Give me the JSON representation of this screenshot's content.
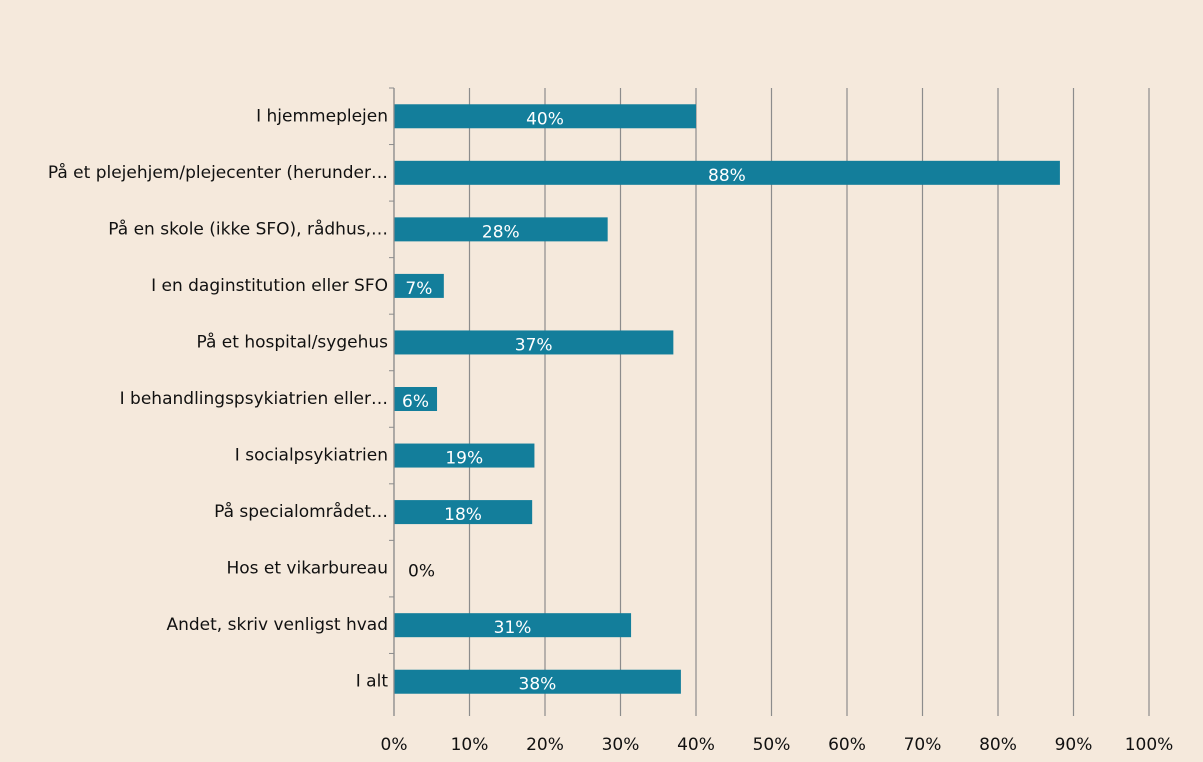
{
  "chart_data": {
    "type": "barh",
    "categories": [
      "I hjemmeplejen",
      "På et plejehjem/plejecenter (herunder…",
      "På en skole (ikke SFO), rådhus,…",
      "I en daginstitution eller SFO",
      "På et hospital/sygehus",
      "I behandlingspsykiatrien eller…",
      "I socialpsykiatrien",
      "På specialområdet…",
      "Hos et vikarbureau",
      "Andet, skriv venligst hvad",
      "I alt"
    ],
    "values": [
      40.0,
      88.2,
      28.3,
      6.6,
      37.0,
      5.7,
      18.6,
      18.3,
      0,
      31.4,
      38.0
    ],
    "value_labels": [
      "40%",
      "88%",
      "28%",
      "7%",
      "37%",
      "6%",
      "19%",
      "18%",
      "0%",
      "31%",
      "38%"
    ],
    "color": "#137e9b",
    "xlim": [
      0,
      100
    ],
    "xticks": [
      {
        "value": 0,
        "label": "0%"
      },
      {
        "value": 10,
        "label": "10%"
      },
      {
        "value": 20,
        "label": "20%"
      },
      {
        "value": 30,
        "label": "30%"
      },
      {
        "value": 40,
        "label": "40%"
      },
      {
        "value": 50,
        "label": "50%"
      },
      {
        "value": 60,
        "label": "60%"
      },
      {
        "value": 70,
        "label": "70%"
      },
      {
        "value": 80,
        "label": "80%"
      },
      {
        "value": 90,
        "label": "90%"
      },
      {
        "value": 100,
        "label": "100%"
      }
    ],
    "grid": true
  }
}
